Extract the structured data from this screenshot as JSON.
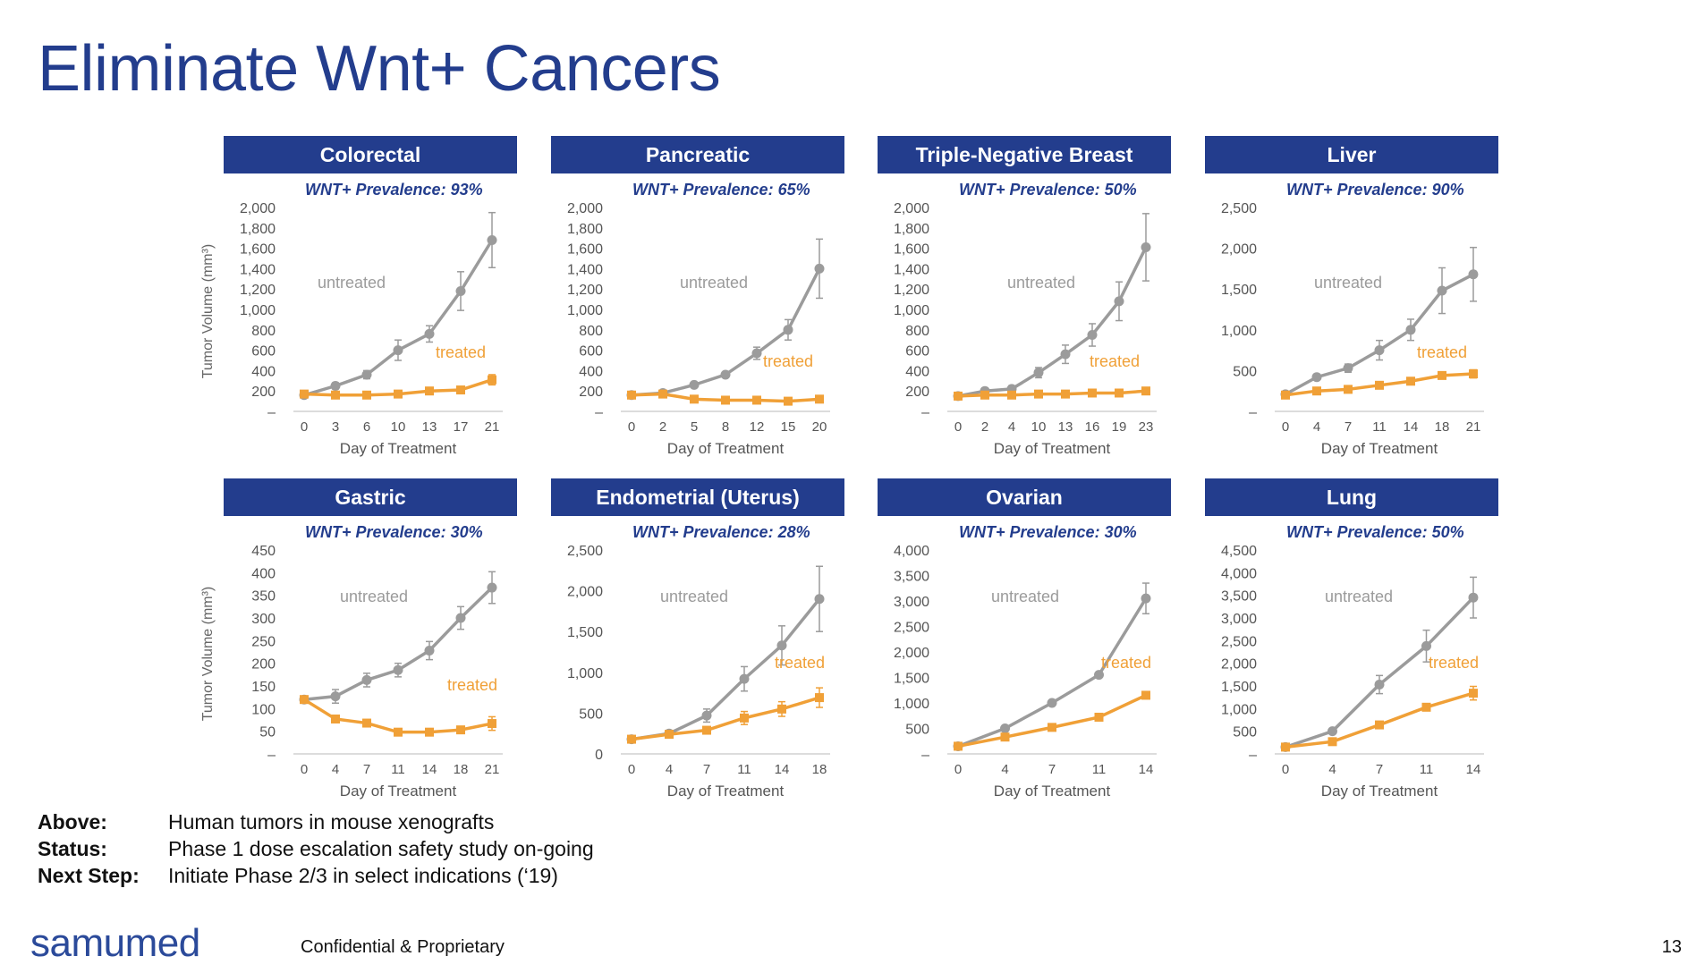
{
  "slide": {
    "title": "Eliminate Wnt+ Cancers",
    "notes": [
      {
        "key": "Above",
        "value": "Human tumors in mouse xenografts"
      },
      {
        "key": "Status",
        "value": "Phase 1 dose escalation safety study on-going"
      },
      {
        "key": "Next Step",
        "value": "Initiate Phase 2/3 in select indications (‘19)"
      }
    ],
    "logo": "samumed",
    "confidential": "Confidential & Proprietary",
    "page_number": "13"
  },
  "colors": {
    "header_bg": "#233d8d",
    "prevalence_text": "#233d8d",
    "untreated": "#9b9b9b",
    "treated": "#f0a037"
  },
  "chart_data": [
    {
      "type": "line",
      "title": "Colorectal",
      "subtitle": "WNT+ Prevalence: 93%",
      "ylabel": "Tumor Volume (mm³)",
      "xlabel": "Day of Treatment",
      "x": [
        0,
        3,
        6,
        10,
        13,
        17,
        21
      ],
      "ylim": [
        0,
        2000
      ],
      "yticks": [
        "–",
        "200",
        "400",
        "600",
        "800",
        "1,000",
        "1,200",
        "1,400",
        "1,600",
        "1,800",
        "2,000"
      ],
      "series": [
        {
          "name": "untreated",
          "values": [
            160,
            250,
            360,
            600,
            760,
            1180,
            1680
          ],
          "err": [
            20,
            30,
            40,
            100,
            80,
            190,
            270
          ]
        },
        {
          "name": "treated",
          "values": [
            170,
            160,
            160,
            170,
            200,
            210,
            310
          ],
          "err": [
            0,
            0,
            0,
            0,
            0,
            20,
            50
          ]
        }
      ]
    },
    {
      "type": "line",
      "title": "Pancreatic",
      "subtitle": "WNT+ Prevalence: 65%",
      "xlabel": "Day of Treatment",
      "x": [
        0,
        2,
        5,
        8,
        12,
        15,
        20
      ],
      "ylim": [
        0,
        2000
      ],
      "yticks": [
        "–",
        "200",
        "400",
        "600",
        "800",
        "1,000",
        "1,200",
        "1,400",
        "1,600",
        "1,800",
        "2,000"
      ],
      "series": [
        {
          "name": "untreated",
          "values": [
            160,
            180,
            260,
            360,
            570,
            800,
            1400
          ],
          "err": [
            0,
            0,
            0,
            20,
            60,
            100,
            290
          ]
        },
        {
          "name": "treated",
          "values": [
            160,
            170,
            120,
            110,
            110,
            100,
            120
          ],
          "err": [
            0,
            0,
            0,
            0,
            0,
            0,
            0
          ]
        }
      ]
    },
    {
      "type": "line",
      "title": "Triple-Negative Breast",
      "subtitle": "WNT+ Prevalence: 50%",
      "xlabel": "Day of Treatment",
      "x": [
        0,
        2,
        4,
        10,
        13,
        16,
        19,
        23
      ],
      "ylim": [
        0,
        2000
      ],
      "yticks": [
        "–",
        "200",
        "400",
        "600",
        "800",
        "1,000",
        "1,200",
        "1,400",
        "1,600",
        "1,800",
        "2,000"
      ],
      "series": [
        {
          "name": "untreated",
          "values": [
            150,
            200,
            220,
            380,
            560,
            750,
            1080,
            1610
          ],
          "err": [
            0,
            30,
            30,
            50,
            90,
            110,
            190,
            330
          ]
        },
        {
          "name": "treated",
          "values": [
            150,
            160,
            160,
            170,
            170,
            180,
            180,
            200
          ],
          "err": [
            0,
            0,
            0,
            0,
            0,
            0,
            0,
            0
          ]
        }
      ]
    },
    {
      "type": "line",
      "title": "Liver",
      "subtitle": "WNT+ Prevalence: 90%",
      "xlabel": "Day of Treatment",
      "x": [
        0,
        4,
        7,
        11,
        14,
        18,
        21
      ],
      "ylim": [
        0,
        2500
      ],
      "yticks": [
        "–",
        "500",
        "1,000",
        "1,500",
        "2,000",
        "2,500"
      ],
      "series": [
        {
          "name": "untreated",
          "values": [
            210,
            420,
            530,
            750,
            1000,
            1480,
            1680
          ],
          "err": [
            0,
            30,
            50,
            120,
            130,
            280,
            330
          ]
        },
        {
          "name": "treated",
          "values": [
            200,
            250,
            270,
            320,
            370,
            440,
            460
          ],
          "err": [
            0,
            0,
            0,
            0,
            0,
            30,
            50
          ]
        }
      ]
    },
    {
      "type": "line",
      "title": "Gastric",
      "subtitle": "WNT+ Prevalence: 30%",
      "ylabel": "Tumor Volume (mm³)",
      "xlabel": "Day of Treatment",
      "x": [
        0,
        4,
        7,
        11,
        14,
        18,
        21
      ],
      "ylim": [
        0,
        450
      ],
      "yticks": [
        "–",
        "50",
        "100",
        "150",
        "200",
        "250",
        "300",
        "350",
        "400",
        "450"
      ],
      "series": [
        {
          "name": "untreated",
          "values": [
            120,
            127,
            163,
            185,
            228,
            300,
            367
          ],
          "err": [
            0,
            15,
            15,
            15,
            20,
            25,
            35
          ]
        },
        {
          "name": "treated",
          "values": [
            120,
            77,
            68,
            48,
            48,
            53,
            67
          ],
          "err": [
            0,
            5,
            5,
            0,
            0,
            5,
            15
          ]
        }
      ]
    },
    {
      "type": "line",
      "title": "Endometrial (Uterus)",
      "subtitle": "WNT+ Prevalence: 28%",
      "xlabel": "Day of Treatment",
      "x": [
        0,
        4,
        7,
        11,
        14,
        18
      ],
      "ylim": [
        0,
        2500
      ],
      "yticks": [
        "0",
        "500",
        "1,000",
        "1,500",
        "2,000",
        "2,500"
      ],
      "series": [
        {
          "name": "untreated",
          "values": [
            180,
            250,
            470,
            920,
            1330,
            1900
          ],
          "err": [
            0,
            0,
            80,
            150,
            240,
            400
          ]
        },
        {
          "name": "treated",
          "values": [
            180,
            240,
            290,
            440,
            550,
            690
          ],
          "err": [
            0,
            0,
            0,
            80,
            90,
            120
          ]
        }
      ]
    },
    {
      "type": "line",
      "title": "Ovarian",
      "subtitle": "WNT+ Prevalence: 30%",
      "xlabel": "Day of Treatment",
      "x": [
        0,
        4,
        7,
        11,
        14
      ],
      "ylim": [
        0,
        4000
      ],
      "yticks": [
        "–",
        "500",
        "1,000",
        "1,500",
        "2,000",
        "2,500",
        "3,000",
        "3,500",
        "4,000"
      ],
      "series": [
        {
          "name": "untreated",
          "values": [
            150,
            500,
            1000,
            1550,
            3050
          ],
          "err": [
            0,
            0,
            0,
            0,
            300
          ]
        },
        {
          "name": "treated",
          "values": [
            150,
            330,
            520,
            720,
            1150
          ],
          "err": [
            0,
            0,
            0,
            0,
            0
          ]
        }
      ]
    },
    {
      "type": "line",
      "title": "Lung",
      "subtitle": "WNT+ Prevalence: 50%",
      "xlabel": "Day of Treatment",
      "x": [
        0,
        4,
        7,
        11,
        14
      ],
      "ylim": [
        0,
        4500
      ],
      "yticks": [
        "–",
        "500",
        "1,000",
        "1,500",
        "2,000",
        "2,500",
        "3,000",
        "3,500",
        "4,000",
        "4,500"
      ],
      "series": [
        {
          "name": "untreated",
          "values": [
            150,
            500,
            1530,
            2380,
            3450
          ],
          "err": [
            0,
            0,
            200,
            350,
            450
          ]
        },
        {
          "name": "treated",
          "values": [
            150,
            270,
            640,
            1030,
            1340
          ],
          "err": [
            0,
            0,
            0,
            0,
            150
          ]
        }
      ]
    }
  ]
}
